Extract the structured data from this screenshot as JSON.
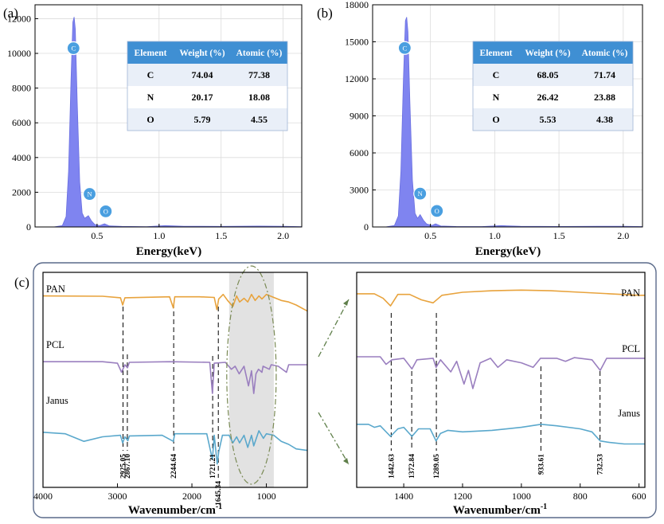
{
  "chart_data": [
    {
      "id": "a",
      "type": "area",
      "panel_label": "(a)",
      "xlabel": "Energy(keV)",
      "x_ticks": [
        "0.5",
        "1.0",
        "1.5",
        "2.0"
      ],
      "y_ticks": [
        "0",
        "2000",
        "4000",
        "6000",
        "8000",
        "10000",
        "12000"
      ],
      "xlim": [
        0.0,
        2.15
      ],
      "ylim": [
        0,
        12800
      ],
      "element_markers": [
        {
          "label": "C",
          "x": 0.31,
          "y": 10300
        },
        {
          "label": "N",
          "x": 0.44,
          "y": 1900
        },
        {
          "label": "O",
          "x": 0.57,
          "y": 900
        }
      ],
      "table": {
        "headers": [
          "Element",
          "Weight (%)",
          "Atomic (%)"
        ],
        "rows": [
          [
            "C",
            "74.04",
            "77.38"
          ],
          [
            "N",
            "20.17",
            "18.08"
          ],
          [
            "O",
            "5.79",
            "4.55"
          ]
        ]
      },
      "spectrum": [
        [
          0.15,
          0
        ],
        [
          0.22,
          80
        ],
        [
          0.25,
          600
        ],
        [
          0.27,
          3200
        ],
        [
          0.29,
          8500
        ],
        [
          0.305,
          11800
        ],
        [
          0.315,
          12100
        ],
        [
          0.325,
          11400
        ],
        [
          0.34,
          7200
        ],
        [
          0.36,
          2600
        ],
        [
          0.38,
          800
        ],
        [
          0.4,
          500
        ],
        [
          0.43,
          650
        ],
        [
          0.455,
          350
        ],
        [
          0.48,
          150
        ],
        [
          0.52,
          80
        ],
        [
          0.56,
          180
        ],
        [
          0.6,
          60
        ],
        [
          0.7,
          30
        ],
        [
          0.9,
          20
        ],
        [
          1.05,
          80
        ],
        [
          1.2,
          40
        ],
        [
          1.5,
          30
        ],
        [
          1.8,
          50
        ],
        [
          2.0,
          40
        ],
        [
          2.15,
          20
        ]
      ]
    },
    {
      "id": "b",
      "type": "area",
      "panel_label": "(b)",
      "xlabel": "Energy(keV)",
      "x_ticks": [
        "0.5",
        "1.0",
        "1.5",
        "2.0"
      ],
      "y_ticks": [
        "0",
        "3000",
        "6000",
        "9000",
        "12000",
        "15000",
        "18000"
      ],
      "xlim": [
        0.05,
        2.15
      ],
      "ylim": [
        0,
        18000
      ],
      "element_markers": [
        {
          "label": "C",
          "x": 0.3,
          "y": 14500
        },
        {
          "label": "N",
          "x": 0.42,
          "y": 2700
        },
        {
          "label": "O",
          "x": 0.55,
          "y": 1300
        }
      ],
      "table": {
        "headers": [
          "Element",
          "Weight (%)",
          "Atomic (%)"
        ],
        "rows": [
          [
            "C",
            "68.05",
            "71.74"
          ],
          [
            "N",
            "26.42",
            "23.88"
          ],
          [
            "O",
            "5.53",
            "4.38"
          ]
        ]
      },
      "spectrum": [
        [
          0.15,
          0
        ],
        [
          0.22,
          120
        ],
        [
          0.25,
          900
        ],
        [
          0.27,
          4500
        ],
        [
          0.29,
          12000
        ],
        [
          0.305,
          16700
        ],
        [
          0.315,
          17000
        ],
        [
          0.325,
          15800
        ],
        [
          0.34,
          10200
        ],
        [
          0.36,
          3800
        ],
        [
          0.38,
          1100
        ],
        [
          0.4,
          700
        ],
        [
          0.42,
          1000
        ],
        [
          0.445,
          550
        ],
        [
          0.47,
          250
        ],
        [
          0.51,
          120
        ],
        [
          0.54,
          260
        ],
        [
          0.58,
          80
        ],
        [
          0.7,
          40
        ],
        [
          0.9,
          30
        ],
        [
          1.05,
          110
        ],
        [
          1.2,
          50
        ],
        [
          1.5,
          40
        ],
        [
          1.8,
          60
        ],
        [
          2.0,
          50
        ],
        [
          2.15,
          30
        ]
      ]
    },
    {
      "id": "c-full",
      "type": "line",
      "panel_label": "(c)",
      "xlabel": "Wavenumber/cm",
      "xlabel_sup": "-1",
      "x_ticks": [
        "4000",
        "3000",
        "2000",
        "1000"
      ],
      "xlim": [
        4000,
        450
      ],
      "highlight_range": [
        1500,
        900
      ],
      "series": [
        {
          "name": "PAN",
          "color": "#e8a33d",
          "offset": 0.82,
          "points": [
            [
              4000,
              0.5
            ],
            [
              3200,
              0.49
            ],
            [
              2960,
              0.44
            ],
            [
              2930,
              0.2
            ],
            [
              2900,
              0.44
            ],
            [
              2300,
              0.47
            ],
            [
              2250,
              0.1
            ],
            [
              2230,
              0.47
            ],
            [
              1900,
              0.47
            ],
            [
              1700,
              0.45
            ],
            [
              1665,
              0.05
            ],
            [
              1640,
              0.4
            ],
            [
              1580,
              0.55
            ],
            [
              1520,
              0.35
            ],
            [
              1450,
              0.15
            ],
            [
              1400,
              0.5
            ],
            [
              1360,
              0.3
            ],
            [
              1300,
              0.42
            ],
            [
              1250,
              0.3
            ],
            [
              1200,
              0.55
            ],
            [
              1150,
              0.35
            ],
            [
              1100,
              0.5
            ],
            [
              1060,
              0.4
            ],
            [
              1000,
              0.55
            ],
            [
              900,
              0.45
            ],
            [
              800,
              0.35
            ],
            [
              700,
              0.3
            ],
            [
              600,
              0.2
            ],
            [
              450,
              0.0
            ]
          ]
        },
        {
          "name": "PCL",
          "color": "#9a7fbf",
          "offset": 0.5,
          "points": [
            [
              4000,
              0.6
            ],
            [
              3200,
              0.6
            ],
            [
              3000,
              0.55
            ],
            [
              2945,
              0.25
            ],
            [
              2900,
              0.5
            ],
            [
              2865,
              0.4
            ],
            [
              2840,
              0.58
            ],
            [
              2300,
              0.6
            ],
            [
              1760,
              0.58
            ],
            [
              1725,
              -0.45
            ],
            [
              1700,
              0.55
            ],
            [
              1550,
              0.58
            ],
            [
              1470,
              0.35
            ],
            [
              1420,
              0.45
            ],
            [
              1365,
              0.2
            ],
            [
              1300,
              0.45
            ],
            [
              1240,
              -0.2
            ],
            [
              1200,
              0.3
            ],
            [
              1170,
              -0.45
            ],
            [
              1140,
              0.2
            ],
            [
              1105,
              0.35
            ],
            [
              1060,
              0.25
            ],
            [
              1045,
              0.45
            ],
            [
              960,
              0.35
            ],
            [
              935,
              0.5
            ],
            [
              840,
              0.45
            ],
            [
              730,
              0.25
            ],
            [
              700,
              0.5
            ],
            [
              450,
              0.5
            ]
          ]
        },
        {
          "name": "Janus",
          "color": "#5aa8cc",
          "offset": 0.2,
          "points": [
            [
              4000,
              0.4
            ],
            [
              3700,
              0.35
            ],
            [
              3450,
              0.1
            ],
            [
              3200,
              0.25
            ],
            [
              2960,
              0.3
            ],
            [
              2930,
              0.05
            ],
            [
              2900,
              0.25
            ],
            [
              2860,
              0.12
            ],
            [
              2840,
              0.28
            ],
            [
              2400,
              0.3
            ],
            [
              2250,
              0.1
            ],
            [
              2230,
              0.35
            ],
            [
              1800,
              0.35
            ],
            [
              1725,
              -0.5
            ],
            [
              1700,
              0.3
            ],
            [
              1660,
              -0.65
            ],
            [
              1640,
              -0.25
            ],
            [
              1590,
              0.3
            ],
            [
              1500,
              0.3
            ],
            [
              1450,
              0.05
            ],
            [
              1400,
              0.25
            ],
            [
              1360,
              0.05
            ],
            [
              1300,
              0.3
            ],
            [
              1250,
              -0.1
            ],
            [
              1200,
              0.3
            ],
            [
              1170,
              -0.05
            ],
            [
              1100,
              0.45
            ],
            [
              1040,
              0.2
            ],
            [
              1000,
              0.35
            ],
            [
              900,
              0.3
            ],
            [
              800,
              0.1
            ],
            [
              700,
              0.0
            ],
            [
              600,
              -0.15
            ],
            [
              450,
              -0.2
            ]
          ]
        }
      ],
      "peaks": [
        {
          "x": 2925.05,
          "label": "2925.05"
        },
        {
          "x": 2867.1,
          "label": "2867.10"
        },
        {
          "x": 2244.64,
          "label": "2244.64"
        },
        {
          "x": 1721.21,
          "label": "1721.21"
        },
        {
          "x": 1645.34,
          "label": "1645.34"
        }
      ]
    },
    {
      "id": "c-zoom",
      "type": "line",
      "xlabel": "Wavenumber/cm",
      "xlabel_sup": "-1",
      "x_ticks": [
        "1400",
        "1200",
        "1000",
        "800",
        "600"
      ],
      "xlim": [
        1560,
        580
      ],
      "series": [
        {
          "name": "PAN",
          "color": "#e8a33d",
          "offset": 0.83,
          "points": [
            [
              1560,
              0.5
            ],
            [
              1500,
              0.5
            ],
            [
              1470,
              0.35
            ],
            [
              1445,
              0.1
            ],
            [
              1420,
              0.48
            ],
            [
              1380,
              0.48
            ],
            [
              1340,
              0.3
            ],
            [
              1300,
              0.2
            ],
            [
              1270,
              0.45
            ],
            [
              1200,
              0.55
            ],
            [
              1100,
              0.6
            ],
            [
              1000,
              0.62
            ],
            [
              900,
              0.6
            ],
            [
              800,
              0.55
            ],
            [
              700,
              0.5
            ],
            [
              600,
              0.45
            ],
            [
              580,
              0.45
            ]
          ]
        },
        {
          "name": "PCL",
          "color": "#9a7fbf",
          "offset": 0.53,
          "points": [
            [
              1560,
              0.55
            ],
            [
              1480,
              0.55
            ],
            [
              1460,
              0.3
            ],
            [
              1440,
              0.45
            ],
            [
              1400,
              0.5
            ],
            [
              1372,
              0.15
            ],
            [
              1355,
              0.45
            ],
            [
              1300,
              0.5
            ],
            [
              1290,
              0.2
            ],
            [
              1275,
              0.45
            ],
            [
              1240,
              0.05
            ],
            [
              1220,
              0.4
            ],
            [
              1195,
              -0.35
            ],
            [
              1180,
              0.1
            ],
            [
              1165,
              -0.5
            ],
            [
              1140,
              0.35
            ],
            [
              1105,
              0.5
            ],
            [
              1080,
              0.2
            ],
            [
              1050,
              0.45
            ],
            [
              1000,
              0.35
            ],
            [
              960,
              0.2
            ],
            [
              935,
              0.5
            ],
            [
              880,
              0.5
            ],
            [
              850,
              0.4
            ],
            [
              820,
              0.52
            ],
            [
              760,
              0.45
            ],
            [
              732,
              0.1
            ],
            [
              710,
              0.5
            ],
            [
              580,
              0.5
            ]
          ]
        },
        {
          "name": "Janus",
          "color": "#5aa8cc",
          "offset": 0.23,
          "points": [
            [
              1560,
              0.45
            ],
            [
              1520,
              0.45
            ],
            [
              1500,
              0.35
            ],
            [
              1480,
              0.4
            ],
            [
              1445,
              0.05
            ],
            [
              1420,
              0.3
            ],
            [
              1400,
              0.35
            ],
            [
              1372,
              0.05
            ],
            [
              1350,
              0.3
            ],
            [
              1310,
              0.3
            ],
            [
              1290,
              -0.1
            ],
            [
              1275,
              0.15
            ],
            [
              1250,
              0.25
            ],
            [
              1200,
              0.2
            ],
            [
              1100,
              0.25
            ],
            [
              1000,
              0.35
            ],
            [
              933,
              0.45
            ],
            [
              880,
              0.4
            ],
            [
              800,
              0.3
            ],
            [
              760,
              0.2
            ],
            [
              732,
              -0.1
            ],
            [
              700,
              -0.15
            ],
            [
              650,
              -0.2
            ],
            [
              580,
              -0.2
            ]
          ]
        }
      ],
      "peaks": [
        {
          "x": 1442.63,
          "label": "1442.63"
        },
        {
          "x": 1372.84,
          "label": "1372.84"
        },
        {
          "x": 1289.05,
          "label": "1289.05"
        },
        {
          "x": 933.61,
          "label": "933.61"
        },
        {
          "x": 732.53,
          "label": "732.53"
        }
      ]
    }
  ],
  "colors": {
    "eds_fill": "#7f84f0",
    "marker_fill": "#4a9fe0",
    "table_header": "#3f8fd3",
    "table_row_alt": "#e9eff8",
    "inset_border": "#5a6a8a",
    "arrow": "#5f7f4a",
    "ellipse": "#7a8a55",
    "highlight": "#e2e2e2"
  }
}
